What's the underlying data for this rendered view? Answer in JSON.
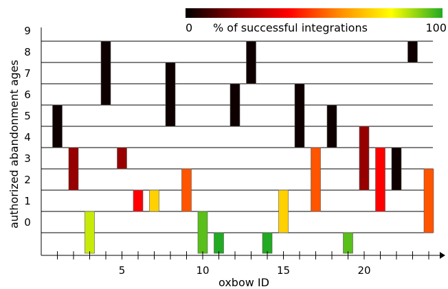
{
  "chart_data": {
    "type": "bar",
    "subtype": "floating-range",
    "xlabel": "oxbow ID",
    "ylabel": "authorized abandonment ages",
    "x_ticks_labeled": [
      5,
      10,
      15,
      20
    ],
    "y_ticks_labeled": [
      0,
      1,
      2,
      3,
      4,
      5,
      6,
      7,
      8,
      9
    ],
    "xlim": [
      0,
      24.5
    ],
    "ylim": [
      -1,
      10
    ],
    "grid": "horizontal",
    "colorbar": {
      "label": "% of successful integrations",
      "min_label": "0",
      "max_label": "100",
      "min": 0,
      "max": 100,
      "placement": "top-right",
      "colors": [
        "#000000",
        "#8b0000",
        "#ff0000",
        "#ff8c00",
        "#ffff00",
        "#22aa22"
      ]
    },
    "bars": [
      {
        "id": 1,
        "start": 4,
        "end": 6,
        "percent": 2
      },
      {
        "id": 2,
        "start": 2,
        "end": 4,
        "percent": 22
      },
      {
        "id": 3,
        "start": -1,
        "end": 1,
        "percent": 85
      },
      {
        "id": 4,
        "start": 6,
        "end": 9,
        "percent": 2
      },
      {
        "id": 5,
        "start": 3,
        "end": 4,
        "percent": 22
      },
      {
        "id": 6,
        "start": 1,
        "end": 2,
        "percent": 40
      },
      {
        "id": 7,
        "start": 1,
        "end": 2,
        "percent": 72
      },
      {
        "id": 8,
        "start": 5,
        "end": 8,
        "percent": 2
      },
      {
        "id": 9,
        "start": 1,
        "end": 3,
        "percent": 52
      },
      {
        "id": 10,
        "start": -1,
        "end": 1,
        "percent": 95
      },
      {
        "id": 11,
        "start": -1,
        "end": 0,
        "percent": 100
      },
      {
        "id": 12,
        "start": 5,
        "end": 7,
        "percent": 2
      },
      {
        "id": 13,
        "start": 7,
        "end": 9,
        "percent": 2
      },
      {
        "id": 14,
        "start": -1,
        "end": 0,
        "percent": 100
      },
      {
        "id": 15,
        "start": 0,
        "end": 2,
        "percent": 72
      },
      {
        "id": 16,
        "start": 4,
        "end": 7,
        "percent": 2
      },
      {
        "id": 17,
        "start": 1,
        "end": 4,
        "percent": 52
      },
      {
        "id": 18,
        "start": 4,
        "end": 6,
        "percent": 2
      },
      {
        "id": 19,
        "start": -1,
        "end": 0,
        "percent": 95
      },
      {
        "id": 20,
        "start": 2,
        "end": 5,
        "percent": 22
      },
      {
        "id": 21,
        "start": 1,
        "end": 4,
        "percent": 40
      },
      {
        "id": 22,
        "start": 2,
        "end": 4,
        "percent": 2
      },
      {
        "id": 23,
        "start": 8,
        "end": 9,
        "percent": 2
      },
      {
        "id": 24,
        "start": 0,
        "end": 3,
        "percent": 52
      }
    ]
  }
}
